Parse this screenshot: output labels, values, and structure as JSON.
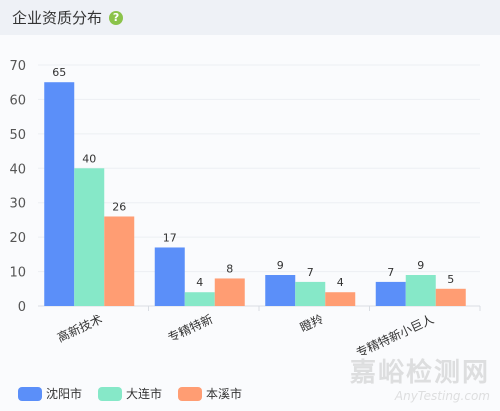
{
  "header": {
    "title": "企业资质分布",
    "help_symbol": "?"
  },
  "colors": {
    "沈阳市": "#5b8ff9",
    "大连市": "#86e8c8",
    "本溪市": "#ff9d73",
    "header_bg": "#eef1f6"
  },
  "chart_data": {
    "type": "bar",
    "categories": [
      "高新技术",
      "专精特新",
      "瞪羚",
      "专精特新小巨人"
    ],
    "series": [
      {
        "name": "沈阳市",
        "values": [
          65,
          17,
          9,
          7
        ]
      },
      {
        "name": "大连市",
        "values": [
          40,
          4,
          7,
          9
        ]
      },
      {
        "name": "本溪市",
        "values": [
          26,
          8,
          4,
          5
        ]
      }
    ],
    "ylim": [
      0,
      70
    ],
    "yticks": [
      0,
      10,
      20,
      30,
      40,
      50,
      60,
      70
    ],
    "grid": true,
    "legend": "bottom-left"
  },
  "watermark": {
    "cn": "嘉峪检测网",
    "en": "AnyTesting.com"
  }
}
